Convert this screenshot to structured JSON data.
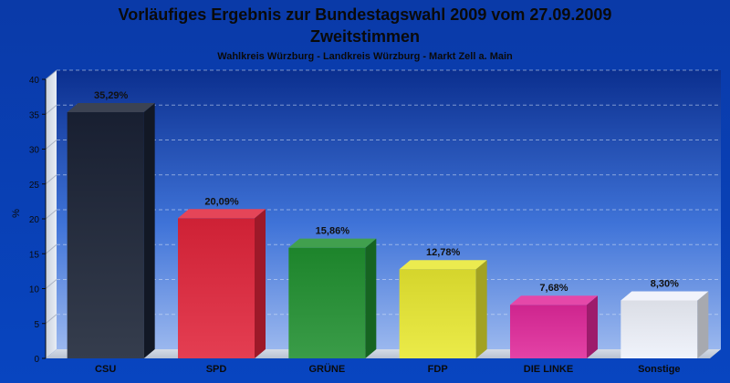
{
  "chart_data": {
    "type": "bar",
    "title": "Vorläufiges Ergebnis zur Bundestagswahl 2009 vom 27.09.2009",
    "title_line2": "Zweitstimmen",
    "subtitle": "Wahlkreis Würzburg - Landkreis Würzburg - Markt Zell a. Main",
    "ylabel": "%",
    "ylim": [
      0,
      40
    ],
    "yticks": [
      "0",
      "5",
      "10",
      "15",
      "20",
      "25",
      "30",
      "35",
      "40"
    ],
    "grid": true,
    "categories": [
      "CSU",
      "SPD",
      "GRÜNE",
      "FDP",
      "DIE LINKE",
      "Sonstige"
    ],
    "values": [
      35.29,
      20.09,
      15.86,
      12.78,
      7.68,
      8.3
    ],
    "data_labels": [
      "35,29%",
      "20,09%",
      "15,86%",
      "12,78%",
      "7,68%",
      "8,30%"
    ],
    "colors": [
      "#1a2235",
      "#e0243a",
      "#1f8f2f",
      "#e8e830",
      "#e0289a",
      "#eef1fa"
    ]
  }
}
